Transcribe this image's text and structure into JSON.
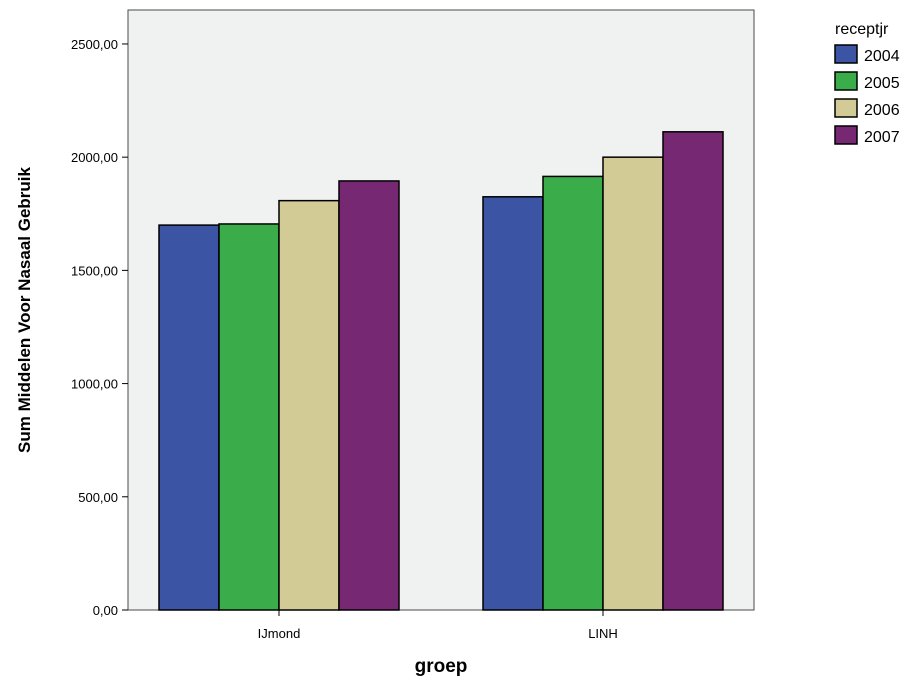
{
  "chart_data": {
    "type": "bar",
    "categories": [
      "IJmond",
      "LINH"
    ],
    "series": [
      {
        "name": "2004",
        "values": [
          1700,
          1825
        ],
        "color": "#3b55a4"
      },
      {
        "name": "2005",
        "values": [
          1705,
          1915
        ],
        "color": "#3aad4a"
      },
      {
        "name": "2006",
        "values": [
          1808,
          2000
        ],
        "color": "#d2cb96"
      },
      {
        "name": "2007",
        "values": [
          1895,
          2112
        ],
        "color": "#762873"
      }
    ],
    "xlabel": "groep",
    "ylabel": "Sum Middelen Voor Nasaal Gebruik",
    "ylim": [
      0,
      2650
    ],
    "yticks": [
      0,
      500,
      1000,
      1500,
      2000,
      2500
    ],
    "ytick_labels": [
      "0,00",
      "500,00",
      "1000,00",
      "1500,00",
      "2000,00",
      "2500,00"
    ],
    "legend_title": "receptjr",
    "legend_position": "right",
    "plot_background": "#f0f2f2",
    "grid": false
  }
}
